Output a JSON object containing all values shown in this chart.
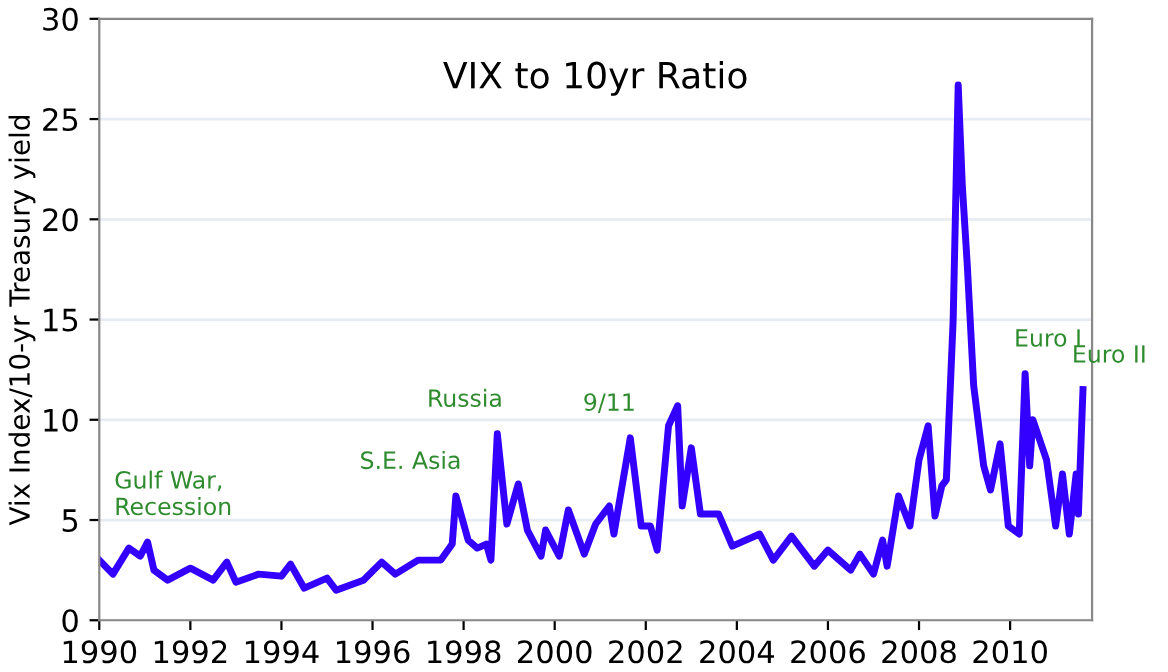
{
  "chart_data": {
    "type": "line",
    "title": "VIX to 10yr Ratio",
    "ylabel": "Vix Index/10-yr Treasury yield",
    "x": [
      1990.0,
      1990.3,
      1990.65,
      1990.9,
      1991.06,
      1991.2,
      1991.5,
      1992.0,
      1992.5,
      1992.8,
      1993.0,
      1993.5,
      1994.0,
      1994.2,
      1994.5,
      1995.0,
      1995.2,
      1995.8,
      1996.2,
      1996.5,
      1997.0,
      1997.5,
      1997.75,
      1997.83,
      1998.1,
      1998.3,
      1998.5,
      1998.6,
      1998.74,
      1998.95,
      1999.2,
      1999.4,
      1999.7,
      1999.8,
      2000.1,
      2000.3,
      2000.65,
      2000.9,
      2001.2,
      2001.3,
      2001.66,
      2001.9,
      2002.1,
      2002.25,
      2002.5,
      2002.7,
      2002.8,
      2003.0,
      2003.2,
      2003.6,
      2003.9,
      2004.5,
      2004.8,
      2005.2,
      2005.7,
      2006.0,
      2006.5,
      2006.7,
      2007.0,
      2007.2,
      2007.3,
      2007.55,
      2007.8,
      2008.0,
      2008.2,
      2008.35,
      2008.5,
      2008.6,
      2008.75,
      2008.86,
      2008.95,
      2009.06,
      2009.2,
      2009.42,
      2009.57,
      2009.78,
      2009.96,
      2010.2,
      2010.33,
      2010.43,
      2010.5,
      2010.8,
      2011.0,
      2011.15,
      2011.3,
      2011.45,
      2011.5,
      2011.6
    ],
    "series": [
      {
        "color": "#3300ff",
        "values": [
          3.0,
          2.3,
          3.6,
          3.2,
          3.9,
          2.5,
          2.0,
          2.6,
          2.0,
          2.9,
          1.9,
          2.3,
          2.2,
          2.8,
          1.6,
          2.1,
          1.5,
          2.0,
          2.9,
          2.3,
          3.0,
          3.0,
          3.8,
          6.2,
          4.0,
          3.6,
          3.8,
          3.0,
          9.3,
          4.8,
          6.8,
          4.5,
          3.2,
          4.5,
          3.2,
          5.5,
          3.3,
          4.8,
          5.7,
          4.3,
          9.1,
          4.7,
          4.7,
          3.5,
          9.7,
          10.7,
          5.7,
          8.6,
          5.3,
          5.3,
          3.7,
          4.3,
          3.0,
          4.2,
          2.7,
          3.5,
          2.5,
          3.3,
          2.3,
          4.0,
          2.7,
          6.2,
          4.7,
          8.0,
          9.7,
          5.2,
          6.7,
          7.0,
          15.0,
          26.7,
          21.7,
          17.7,
          11.7,
          7.7,
          6.5,
          8.8,
          4.7,
          4.3,
          12.3,
          7.7,
          10.0,
          8.0,
          4.7,
          7.3,
          4.3,
          7.3,
          5.3,
          11.5
        ]
      }
    ],
    "xlim": [
      1990,
      2011.8
    ],
    "xticks": [
      1990,
      1992,
      1994,
      1996,
      1998,
      2000,
      2002,
      2004,
      2006,
      2008,
      2010
    ],
    "ylim": [
      0,
      30
    ],
    "yticks": [
      0,
      5,
      10,
      15,
      20,
      25,
      30
    ],
    "grid": "y",
    "marker": "none",
    "line_style": "solid",
    "annotations": [
      {
        "text": "Gulf War,\nRecession",
        "x": 1991.06,
        "y": 3.9
      },
      {
        "text": "S.E. Asia",
        "x": 1997.83,
        "y": 6.2
      },
      {
        "text": "Russia",
        "x": 1998.74,
        "y": 9.3
      },
      {
        "text": "9/11",
        "x": 2001.66,
        "y": 9.1
      },
      {
        "text": "Euro I",
        "x": 2010.33,
        "y": 12.3
      },
      {
        "text": "Euro II",
        "x": 2011.6,
        "y": 11.5
      }
    ]
  }
}
